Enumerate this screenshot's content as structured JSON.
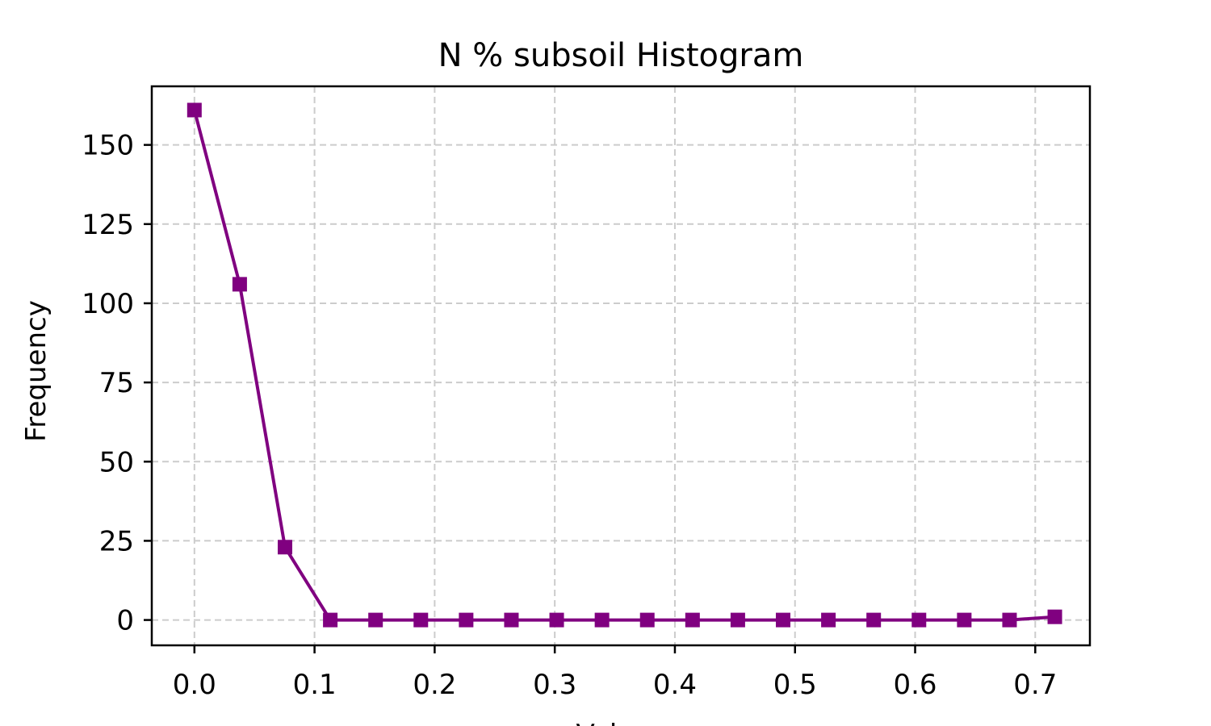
{
  "chart_data": {
    "type": "line",
    "title": "N % subsoil Histogram",
    "xlabel": "Values",
    "ylabel": "Frequency",
    "xlim": [
      -0.0355,
      0.7455
    ],
    "ylim": [
      -8,
      168.5
    ],
    "grid": true,
    "x_ticks": [
      "0.0",
      "0.1",
      "0.2",
      "0.3",
      "0.4",
      "0.5",
      "0.6",
      "0.7"
    ],
    "y_ticks": [
      "0",
      "25",
      "50",
      "75",
      "100",
      "125",
      "150"
    ],
    "series": [
      {
        "color": "#800080",
        "marker": "square",
        "x": [
          0.0,
          0.0377,
          0.0754,
          0.1131,
          0.1508,
          0.1885,
          0.2262,
          0.2639,
          0.3016,
          0.3393,
          0.377,
          0.4147,
          0.4524,
          0.4901,
          0.5278,
          0.5655,
          0.6032,
          0.6409,
          0.6786,
          0.7163
        ],
        "y": [
          161,
          106,
          23,
          0,
          0,
          0,
          0,
          0,
          0,
          0,
          0,
          0,
          0,
          0,
          0,
          0,
          0,
          0,
          0,
          1
        ]
      }
    ]
  }
}
